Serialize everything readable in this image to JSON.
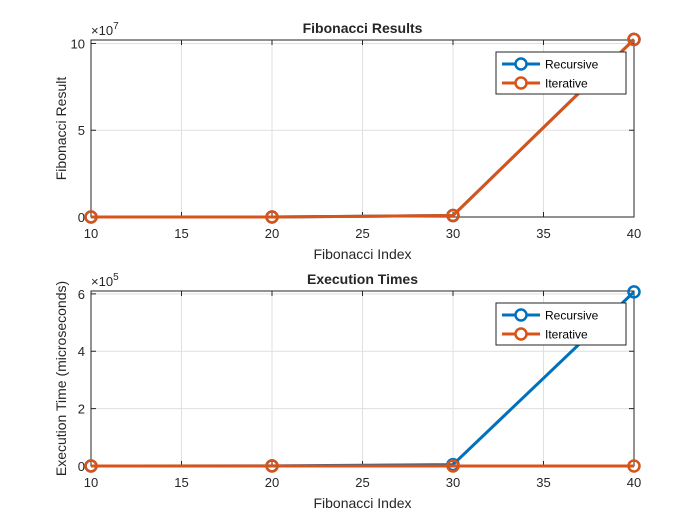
{
  "chart_data": [
    {
      "type": "line",
      "title": "Fibonacci Results",
      "xlabel": "Fibonacci Index",
      "ylabel": "Fibonacci Result",
      "exponent_base": "×10",
      "exponent_power": "7",
      "xlim": [
        10,
        40
      ],
      "ylim": [
        0,
        10.2
      ],
      "xticks": [
        10,
        15,
        20,
        25,
        30,
        35,
        40
      ],
      "xtick_labels": [
        "10",
        "15",
        "20",
        "25",
        "30",
        "35",
        "40"
      ],
      "yticks": [
        0,
        5,
        10
      ],
      "ytick_labels": [
        "0",
        "5",
        "10"
      ],
      "grid": true,
      "legend_position": "top-right",
      "x": [
        10,
        20,
        30,
        40
      ],
      "series": [
        {
          "name": "Recursive",
          "color": "#0072BD",
          "values": [
            5.5e-06,
            0.0006765,
            0.083204,
            10.2334155
          ]
        },
        {
          "name": "Iterative",
          "color": "#D95319",
          "values": [
            5.5e-06,
            0.0006765,
            0.083204,
            10.2334155
          ]
        }
      ]
    },
    {
      "type": "line",
      "title": "Execution Times",
      "xlabel": "Fibonacci Index",
      "ylabel": "Execution Time (microseconds)",
      "exponent_base": "×10",
      "exponent_power": "5",
      "xlim": [
        10,
        40
      ],
      "ylim": [
        0,
        6.1
      ],
      "xticks": [
        10,
        15,
        20,
        25,
        30,
        35,
        40
      ],
      "xtick_labels": [
        "10",
        "15",
        "20",
        "25",
        "30",
        "35",
        "40"
      ],
      "yticks": [
        0,
        2,
        4,
        6
      ],
      "ytick_labels": [
        "0",
        "2",
        "4",
        "6"
      ],
      "grid": true,
      "legend_position": "top-right",
      "x": [
        10,
        20,
        30,
        40
      ],
      "series": [
        {
          "name": "Recursive",
          "color": "#0072BD",
          "values": [
            0.0,
            0.005,
            0.05,
            6.07
          ]
        },
        {
          "name": "Iterative",
          "color": "#D95319",
          "values": [
            0.0,
            0.0,
            0.0,
            0.0
          ]
        }
      ]
    }
  ]
}
